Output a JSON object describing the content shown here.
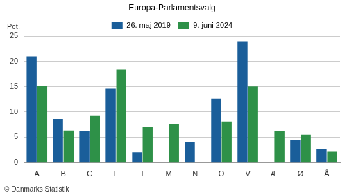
{
  "chart_data": {
    "type": "bar",
    "title": "Europa-Parlamentsvalg",
    "y_label": "Pct.",
    "source": "© Danmarks Statistik",
    "categories": [
      "A",
      "B",
      "C",
      "F",
      "I",
      "M",
      "N",
      "O",
      "V",
      "Æ",
      "Ø",
      "Å"
    ],
    "series": [
      {
        "name": "26. maj 2019",
        "color": "#1a5e9a",
        "values": [
          21.0,
          8.6,
          6.2,
          14.7,
          2.0,
          null,
          4.1,
          12.6,
          23.9,
          null,
          4.5,
          2.6
        ]
      },
      {
        "name": "9. juni 2024",
        "color": "#2e9148",
        "values": [
          15.1,
          6.3,
          9.2,
          18.4,
          7.1,
          7.5,
          null,
          8.1,
          15.0,
          6.2,
          5.5,
          2.1
        ]
      }
    ],
    "ylim": [
      0,
      25
    ],
    "yticks": [
      0,
      5,
      10,
      15,
      20,
      25
    ],
    "grid": true,
    "legend": "top"
  }
}
